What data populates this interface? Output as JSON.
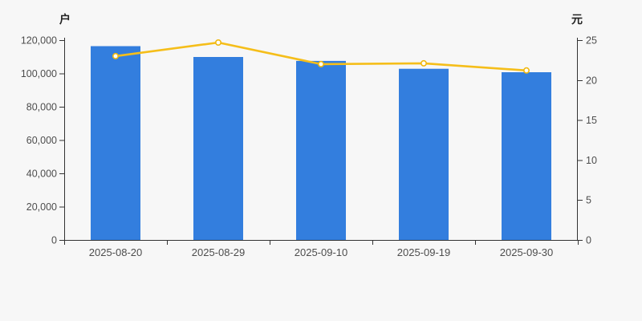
{
  "chart_data": {
    "type": "bar",
    "subtype": "bar+line dual axis",
    "title": "",
    "categories": [
      "2025-08-20",
      "2025-08-29",
      "2025-09-10",
      "2025-09-19",
      "2025-09-30"
    ],
    "series": [
      {
        "name": "holders-bar-series",
        "type": "bar",
        "axis": "left",
        "unit": "户",
        "values": [
          116400,
          109900,
          107500,
          102800,
          100700
        ]
      },
      {
        "name": "price-line-series",
        "type": "line",
        "axis": "right",
        "unit": "元",
        "values": [
          23.0,
          24.7,
          22.0,
          22.1,
          21.2
        ]
      }
    ],
    "left_axis": {
      "name": "户",
      "min": 0,
      "max": 120000,
      "step": 20000,
      "tick_labels": [
        "0",
        "20,000",
        "40,000",
        "60,000",
        "80,000",
        "100,000",
        "120,000"
      ]
    },
    "right_axis": {
      "name": "元",
      "min": 0,
      "max": 25,
      "step": 5,
      "tick_labels": [
        "0",
        "5",
        "10",
        "15",
        "20",
        "25"
      ]
    },
    "grid": false,
    "legend": "none",
    "colors": {
      "background": "#f7f7f7",
      "bar": "#337EDE",
      "line": "#F5BE1A",
      "marker_fill": "#FFFFFF",
      "marker_stroke": "#F0B810",
      "axis_line": "#333333",
      "tick_text": "#4d4d4d",
      "axis_name_text": "#222222"
    }
  }
}
